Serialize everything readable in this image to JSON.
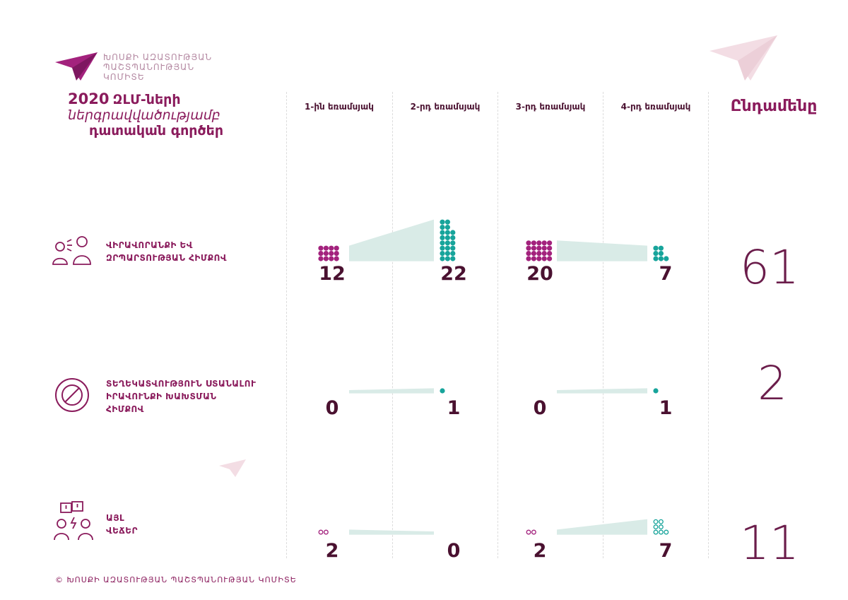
{
  "org": {
    "line1": "ԽՈՍՔԻ ԱԶԱՏՈՒԹՅԱՆ",
    "line2": "ՊԱՇՏՊԱՆՈՒԹՅԱՆ",
    "line3": "ԿՈՄԻՏԵ"
  },
  "title": {
    "year": "2020",
    "part1": "ԶԼՄ-ների",
    "part2": "ներգրավվածությամբ",
    "part3": "դատական գործեր"
  },
  "copyright": "© ԽՈՍՔԻ ԱԶԱՏՈՒԹՅԱՆ ՊԱՇՏՊԱՆՈՒԹՅԱՆ ԿՈՄԻՏԵ",
  "colors": {
    "magenta": "#a3227d",
    "teal": "#17a49b",
    "band": "#d9ebe7",
    "dark": "#4a1130",
    "brand": "#8a1b5c",
    "plane": "#a3227d"
  },
  "icons": [
    "paper-plane-icon",
    "people-talking-icon",
    "prohibited-icon",
    "people-argue-icon"
  ],
  "chart_data": {
    "type": "table",
    "categories": [
      "1-ին եռամսյակ",
      "2-րդ եռամսյակ",
      "3-րդ եռամսյակ",
      "4-րդ եռամսյակ"
    ],
    "total_label": "Ընդամենը",
    "series": [
      {
        "name": "ՎԻՐԱՎՈՐԱՆՔԻ ԵՎ ԶՐՊԱՐՏՈՒԹՅԱՆ ՀԻՄՔՈՎ",
        "label_lines": [
          "ՎԻՐԱՎՈՐԱՆՔԻ ԵՎ",
          "ԶՐՊԱՐՏՈՒԹՅԱՆ ՀԻՄՔՈՎ"
        ],
        "values": [
          12,
          22,
          20,
          7
        ],
        "total": 61
      },
      {
        "name": "ՏԵՂԵԿԱՏՎՈՒԹՅՈՒՆ ՍՏԱՆԱԼՈՒ ԻՐԱՎՈՒՆՔԻ ԽԱԽՏՄԱՆ ՀԻՄՔՈՎ",
        "label_lines": [
          "ՏԵՂԵԿԱՏՎՈՒԹՅՈՒՆ ՍՏԱՆԱԼՈՒ",
          "ԻՐԱՎՈՒՆՔԻ ԽԱԽՏՄԱՆ",
          "ՀԻՄՔՈՎ"
        ],
        "values": [
          0,
          1,
          0,
          1
        ],
        "total": 2
      },
      {
        "name": "ԱՅԼ ՎԵՃԵՐ",
        "label_lines": [
          "ԱՅԼ",
          "ՎԵՃԵՐ"
        ],
        "values": [
          2,
          0,
          2,
          7
        ],
        "total": 11
      }
    ]
  }
}
